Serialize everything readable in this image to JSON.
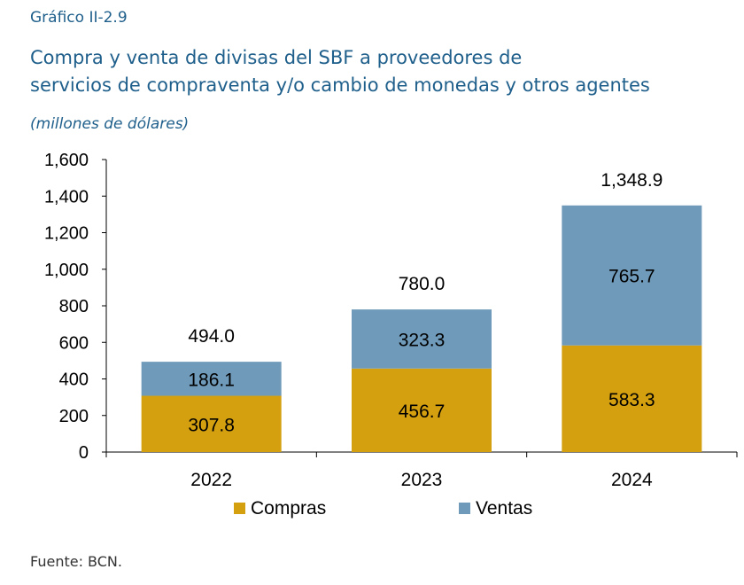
{
  "header": {
    "figure_number": "Gráfico II-2.9",
    "title_line1": "Compra y venta de divisas del SBF a  proveedores de",
    "title_line2": "servicios de compraventa y/o cambio de monedas y otros agentes",
    "units": "(millones de dólares)"
  },
  "chart_data": {
    "type": "bar",
    "stacked": true,
    "categories": [
      "2022",
      "2023",
      "2024"
    ],
    "series": [
      {
        "name": "Compras",
        "color": "#d4a010",
        "values": [
          307.8,
          456.7,
          583.3
        ],
        "labels": [
          "307.8",
          "456.7",
          "583.3"
        ]
      },
      {
        "name": "Ventas",
        "color": "#6f9ab9",
        "values": [
          186.1,
          323.3,
          765.7
        ],
        "labels": [
          "186.1",
          "323.3",
          "765.7"
        ]
      }
    ],
    "totals": [
      494.0,
      780.0,
      1348.9
    ],
    "total_labels": [
      "494.0",
      "780.0",
      "1,348.9"
    ],
    "ylim": [
      0,
      1600
    ],
    "yticks": [
      0,
      200,
      400,
      600,
      800,
      1000,
      1200,
      1400,
      1600
    ],
    "ytick_labels": [
      "0",
      "200",
      "400",
      "600",
      "800",
      "1,000",
      "1,200",
      "1,400",
      "1,600"
    ],
    "legend_position": "bottom",
    "grid": false
  },
  "footer": {
    "source": "Fuente: BCN."
  }
}
